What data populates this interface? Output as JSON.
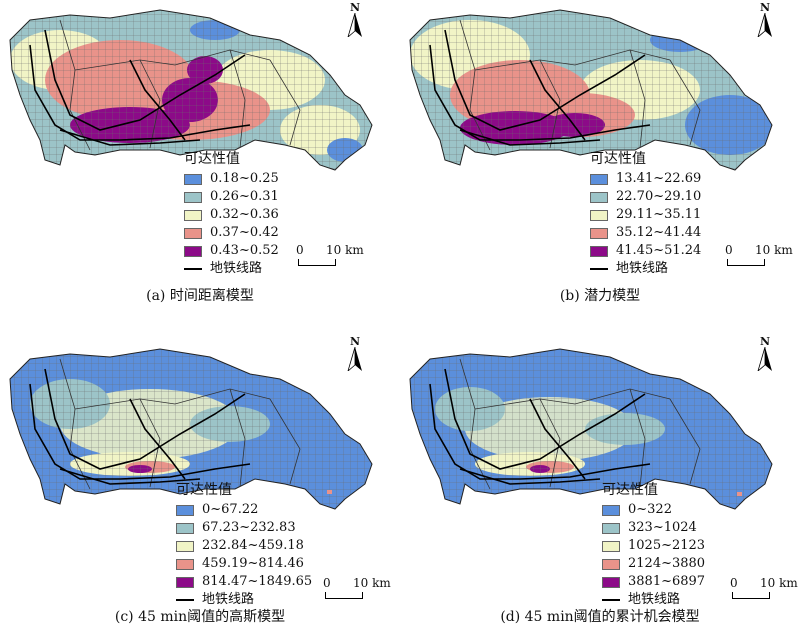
{
  "panels": [
    {
      "id": "a",
      "caption": "(a) 时间距离模型",
      "legend": {
        "title": "可达性值",
        "classes": [
          {
            "label": "0.18~0.25",
            "color": "#5b8fdc"
          },
          {
            "label": "0.26~0.31",
            "color": "#9cc4c8"
          },
          {
            "label": "0.32~0.36",
            "color": "#f1f4c6"
          },
          {
            "label": "0.37~0.42",
            "color": "#e9938a"
          },
          {
            "label": "0.43~0.52",
            "color": "#8c0a88"
          }
        ],
        "metro_label": "地铁线路"
      },
      "scale": {
        "zero": "0",
        "dist": "10 km"
      },
      "north": "N"
    },
    {
      "id": "b",
      "caption": "(b) 潜力模型",
      "legend": {
        "title": "可达性值",
        "classes": [
          {
            "label": "13.41~22.69",
            "color": "#5b8fdc"
          },
          {
            "label": "22.70~29.10",
            "color": "#9cc4c8"
          },
          {
            "label": "29.11~35.11",
            "color": "#f1f4c6"
          },
          {
            "label": "35.12~41.44",
            "color": "#e9938a"
          },
          {
            "label": "41.45~51.24",
            "color": "#8c0a88"
          }
        ],
        "metro_label": "地铁线路"
      },
      "scale": {
        "zero": "0",
        "dist": "10 km"
      },
      "north": "N"
    },
    {
      "id": "c",
      "caption": "(c) 45 min阈值的高斯模型",
      "legend": {
        "title": "可达性值",
        "classes": [
          {
            "label": "0~67.22",
            "color": "#5b8fdc"
          },
          {
            "label": "67.23~232.83",
            "color": "#9cc4c8"
          },
          {
            "label": "232.84~459.18",
            "color": "#f1f4c6"
          },
          {
            "label": "459.19~814.46",
            "color": "#e9938a"
          },
          {
            "label": "814.47~1849.65",
            "color": "#8c0a88"
          }
        ],
        "metro_label": "地铁线路"
      },
      "scale": {
        "zero": "0",
        "dist": "10 km"
      },
      "north": "N"
    },
    {
      "id": "d",
      "caption": "(d) 45 min阈值的累计机会模型",
      "legend": {
        "title": "可达性值",
        "classes": [
          {
            "label": "0~322",
            "color": "#5b8fdc"
          },
          {
            "label": "323~1024",
            "color": "#9cc4c8"
          },
          {
            "label": "1025~2123",
            "color": "#f1f4c6"
          },
          {
            "label": "2124~3880",
            "color": "#e9938a"
          },
          {
            "label": "3881~6897",
            "color": "#8c0a88"
          }
        ],
        "metro_label": "地铁线路"
      },
      "scale": {
        "zero": "0",
        "dist": "10 km"
      },
      "north": "N"
    }
  ]
}
